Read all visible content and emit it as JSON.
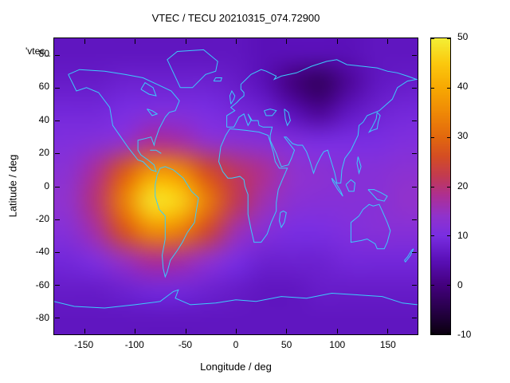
{
  "title": "VTEC / TECU 20210315_074.72900",
  "key_label": "'vtec_",
  "axes": {
    "x": {
      "label": "Longitude / deg",
      "range": [
        -180,
        180
      ],
      "ticks": [
        -150,
        -100,
        -50,
        0,
        50,
        100,
        150
      ]
    },
    "y": {
      "label": "Latitude / deg",
      "range": [
        -90,
        90
      ],
      "ticks": [
        -80,
        -60,
        -40,
        -20,
        0,
        20,
        40,
        60,
        80
      ]
    }
  },
  "colorbar": {
    "range": [
      -10,
      50
    ],
    "ticks": [
      -10,
      0,
      10,
      20,
      30,
      40,
      50
    ],
    "palette": [
      {
        "v": -10,
        "c": "#0b0010"
      },
      {
        "v": -5,
        "c": "#28004a"
      },
      {
        "v": 0,
        "c": "#44007f"
      },
      {
        "v": 5,
        "c": "#5a10b8"
      },
      {
        "v": 10,
        "c": "#7a2ee2"
      },
      {
        "v": 14,
        "c": "#9132cc"
      },
      {
        "v": 18,
        "c": "#ad2f94"
      },
      {
        "v": 22,
        "c": "#c23a52"
      },
      {
        "v": 26,
        "c": "#d44d24"
      },
      {
        "v": 30,
        "c": "#e2680e"
      },
      {
        "v": 35,
        "c": "#ef8906"
      },
      {
        "v": 40,
        "c": "#f7a802"
      },
      {
        "v": 45,
        "c": "#fbc90e"
      },
      {
        "v": 50,
        "c": "#f4ef35"
      }
    ]
  },
  "map_overlay": {
    "stroke": "#3bcdfb",
    "polylines": [
      [
        [
          -166,
          68
        ],
        [
          -158,
          58
        ],
        [
          -148,
          60
        ],
        [
          -136,
          57
        ],
        [
          -125,
          48
        ],
        [
          -122,
          37
        ],
        [
          -114,
          30
        ],
        [
          -106,
          23
        ],
        [
          -97,
          16
        ],
        [
          -92,
          15
        ],
        [
          -84,
          10
        ],
        [
          -79,
          9
        ],
        [
          -81,
          13
        ],
        [
          -87,
          16
        ],
        [
          -94,
          19
        ],
        [
          -97,
          22
        ],
        [
          -97,
          28
        ],
        [
          -90,
          29
        ],
        [
          -84,
          30
        ],
        [
          -81,
          25
        ],
        [
          -80,
          28
        ],
        [
          -76,
          35
        ],
        [
          -70,
          42
        ],
        [
          -66,
          45
        ],
        [
          -60,
          46
        ],
        [
          -56,
          52
        ],
        [
          -64,
          58
        ],
        [
          -78,
          62
        ],
        [
          -92,
          66
        ],
        [
          -110,
          68
        ],
        [
          -130,
          70
        ],
        [
          -155,
          71
        ],
        [
          -166,
          68
        ]
      ],
      [
        [
          -94,
          59
        ],
        [
          -86,
          56
        ],
        [
          -79,
          55
        ],
        [
          -82,
          60
        ],
        [
          -90,
          63
        ],
        [
          -94,
          59
        ]
      ],
      [
        [
          -88,
          47
        ],
        [
          -83,
          46
        ],
        [
          -78,
          44
        ],
        [
          -83,
          43
        ],
        [
          -88,
          47
        ]
      ],
      [
        [
          -55,
          60
        ],
        [
          -43,
          60
        ],
        [
          -30,
          68
        ],
        [
          -20,
          70
        ],
        [
          -18,
          76
        ],
        [
          -32,
          83
        ],
        [
          -58,
          82
        ],
        [
          -68,
          77
        ],
        [
          -55,
          60
        ]
      ],
      [
        [
          -85,
          22
        ],
        [
          -79,
          22
        ],
        [
          -74,
          20
        ]
      ],
      [
        [
          -78,
          7
        ],
        [
          -75,
          11
        ],
        [
          -70,
          12
        ],
        [
          -62,
          10
        ],
        [
          -52,
          5
        ],
        [
          -44,
          -3
        ],
        [
          -37,
          -7
        ],
        [
          -39,
          -14
        ],
        [
          -41,
          -22
        ],
        [
          -48,
          -28
        ],
        [
          -53,
          -34
        ],
        [
          -58,
          -39
        ],
        [
          -65,
          -45
        ],
        [
          -68,
          -52
        ],
        [
          -70,
          -55
        ],
        [
          -72,
          -50
        ],
        [
          -73,
          -42
        ],
        [
          -70,
          -32
        ],
        [
          -70,
          -18
        ],
        [
          -76,
          -14
        ],
        [
          -80,
          -6
        ],
        [
          -80,
          1
        ],
        [
          -78,
          7
        ]
      ],
      [
        [
          -6,
          35
        ],
        [
          -10,
          31
        ],
        [
          -15,
          24
        ],
        [
          -17,
          15
        ],
        [
          -13,
          9
        ],
        [
          -8,
          5
        ],
        [
          -4,
          5
        ],
        [
          4,
          6
        ],
        [
          8,
          4
        ],
        [
          9,
          0
        ],
        [
          12,
          -5
        ],
        [
          12,
          -17
        ],
        [
          15,
          -26
        ],
        [
          18,
          -34
        ],
        [
          25,
          -34
        ],
        [
          31,
          -29
        ],
        [
          35,
          -22
        ],
        [
          40,
          -15
        ],
        [
          40,
          -10
        ],
        [
          42,
          -2
        ],
        [
          46,
          4
        ],
        [
          51,
          11
        ],
        [
          43,
          11
        ],
        [
          39,
          15
        ],
        [
          37,
          21
        ],
        [
          32,
          31
        ],
        [
          23,
          33
        ],
        [
          10,
          34
        ],
        [
          -6,
          35
        ]
      ],
      [
        [
          -9,
          36
        ],
        [
          -9,
          43
        ],
        [
          -1,
          46
        ],
        [
          -5,
          48
        ],
        [
          1,
          51
        ],
        [
          4,
          53
        ],
        [
          8,
          55
        ],
        [
          8,
          57
        ],
        [
          5,
          59
        ],
        [
          5,
          62
        ],
        [
          10,
          65
        ],
        [
          15,
          68
        ],
        [
          25,
          71
        ],
        [
          30,
          70
        ],
        [
          40,
          67
        ],
        [
          38,
          65
        ],
        [
          45,
          67
        ],
        [
          60,
          69
        ],
        [
          75,
          73
        ],
        [
          90,
          76
        ],
        [
          100,
          77
        ],
        [
          110,
          74
        ],
        [
          125,
          73
        ],
        [
          140,
          72
        ],
        [
          150,
          70
        ],
        [
          160,
          69
        ],
        [
          170,
          67
        ],
        [
          179,
          65
        ],
        [
          170,
          64
        ],
        [
          160,
          60
        ],
        [
          155,
          53
        ],
        [
          142,
          46
        ],
        [
          130,
          43
        ],
        [
          126,
          39
        ],
        [
          122,
          37
        ],
        [
          121,
          31
        ],
        [
          114,
          22
        ],
        [
          108,
          17
        ],
        [
          105,
          10
        ],
        [
          104,
          2
        ],
        [
          100,
          2
        ],
        [
          98,
          8
        ],
        [
          94,
          16
        ],
        [
          91,
          22
        ],
        [
          87,
          21
        ],
        [
          84,
          18
        ],
        [
          80,
          13
        ],
        [
          77,
          8
        ],
        [
          73,
          16
        ],
        [
          70,
          21
        ],
        [
          66,
          25
        ],
        [
          61,
          25
        ],
        [
          56,
          26
        ],
        [
          50,
          30
        ],
        [
          48,
          30
        ],
        [
          58,
          22
        ],
        [
          55,
          17
        ],
        [
          52,
          13
        ],
        [
          45,
          12
        ],
        [
          43,
          15
        ],
        [
          40,
          20
        ],
        [
          34,
          28
        ],
        [
          34,
          31
        ],
        [
          36,
          36
        ],
        [
          30,
          36
        ],
        [
          27,
          36
        ],
        [
          23,
          37
        ],
        [
          22,
          40
        ],
        [
          16,
          40
        ],
        [
          12,
          44
        ],
        [
          15,
          40
        ],
        [
          12,
          37
        ],
        [
          8,
          44
        ],
        [
          3,
          42
        ],
        [
          -2,
          36
        ],
        [
          -9,
          36
        ]
      ],
      [
        [
          -5,
          50
        ],
        [
          -2,
          53
        ],
        [
          -1,
          55
        ],
        [
          -4,
          58
        ],
        [
          -6,
          55
        ],
        [
          -5,
          50
        ]
      ],
      [
        [
          -22,
          64
        ],
        [
          -15,
          64
        ],
        [
          -14,
          66
        ],
        [
          -20,
          66
        ],
        [
          -22,
          64
        ]
      ],
      [
        [
          140,
          45
        ],
        [
          143,
          43
        ],
        [
          141,
          39
        ],
        [
          140,
          35
        ],
        [
          135,
          34
        ],
        [
          132,
          33
        ],
        [
          135,
          36
        ],
        [
          139,
          41
        ],
        [
          140,
          45
        ]
      ],
      [
        [
          95,
          5
        ],
        [
          99,
          2
        ],
        [
          104,
          -3
        ],
        [
          106,
          -6
        ],
        [
          101,
          -2
        ],
        [
          96,
          3
        ],
        [
          95,
          5
        ]
      ],
      [
        [
          109,
          1
        ],
        [
          114,
          4
        ],
        [
          118,
          2
        ],
        [
          117,
          -3
        ],
        [
          112,
          -3
        ],
        [
          109,
          1
        ]
      ],
      [
        [
          131,
          -2
        ],
        [
          137,
          -2
        ],
        [
          144,
          -4
        ],
        [
          150,
          -6
        ],
        [
          147,
          -9
        ],
        [
          140,
          -8
        ],
        [
          134,
          -4
        ],
        [
          131,
          -2
        ]
      ],
      [
        [
          121,
          18
        ],
        [
          124,
          12
        ],
        [
          122,
          8
        ],
        [
          120,
          14
        ],
        [
          121,
          18
        ]
      ],
      [
        [
          114,
          -22
        ],
        [
          114,
          -34
        ],
        [
          124,
          -33
        ],
        [
          130,
          -32
        ],
        [
          138,
          -35
        ],
        [
          140,
          -38
        ],
        [
          147,
          -38
        ],
        [
          150,
          -34
        ],
        [
          153,
          -27
        ],
        [
          150,
          -22
        ],
        [
          145,
          -15
        ],
        [
          142,
          -11
        ],
        [
          136,
          -12
        ],
        [
          132,
          -11
        ],
        [
          126,
          -14
        ],
        [
          122,
          -18
        ],
        [
          114,
          -22
        ]
      ],
      [
        [
          167,
          -45
        ],
        [
          170,
          -43
        ],
        [
          174,
          -39
        ],
        [
          176,
          -38
        ],
        [
          173,
          -42
        ],
        [
          168,
          -46
        ],
        [
          167,
          -45
        ]
      ],
      [
        [
          44,
          -16
        ],
        [
          47,
          -15
        ],
        [
          50,
          -16
        ],
        [
          48,
          -22
        ],
        [
          45,
          -25
        ],
        [
          43,
          -21
        ],
        [
          44,
          -16
        ]
      ],
      [
        [
          -180,
          -70
        ],
        [
          -160,
          -73
        ],
        [
          -130,
          -74
        ],
        [
          -100,
          -72
        ],
        [
          -75,
          -70
        ],
        [
          -62,
          -64
        ],
        [
          -57,
          -63
        ],
        [
          -60,
          -68
        ],
        [
          -45,
          -72
        ],
        [
          -20,
          -71
        ],
        [
          0,
          -69
        ],
        [
          20,
          -70
        ],
        [
          45,
          -67
        ],
        [
          70,
          -68
        ],
        [
          95,
          -65
        ],
        [
          120,
          -66
        ],
        [
          145,
          -67
        ],
        [
          165,
          -71
        ],
        [
          180,
          -72
        ]
      ],
      [
        [
          28,
          46
        ],
        [
          34,
          47
        ],
        [
          40,
          46
        ],
        [
          36,
          43
        ],
        [
          30,
          43
        ],
        [
          28,
          46
        ]
      ],
      [
        [
          48,
          47
        ],
        [
          52,
          45
        ],
        [
          54,
          40
        ],
        [
          51,
          37
        ],
        [
          49,
          41
        ],
        [
          48,
          47
        ]
      ]
    ]
  },
  "chart_data": {
    "type": "heatmap",
    "title": "VTEC / TECU 20210315_074.72900",
    "xlabel": "Longitude / deg",
    "ylabel": "Latitude / deg",
    "units": "TECU",
    "value_range": [
      -10,
      50
    ],
    "x_range": [
      -180,
      180
    ],
    "y_range": [
      -90,
      90
    ],
    "lon": [
      -180,
      -150,
      -120,
      -90,
      -60,
      -30,
      0,
      30,
      60,
      90,
      120,
      150,
      180
    ],
    "lat": [
      90,
      70,
      50,
      30,
      10,
      -10,
      -30,
      -50,
      -70,
      -90
    ],
    "values_tecu": [
      [
        6,
        6,
        6,
        6,
        6,
        6,
        6,
        5,
        5,
        5,
        5,
        6,
        6
      ],
      [
        7,
        7,
        8,
        8,
        8,
        8,
        7,
        5,
        0,
        -3,
        2,
        6,
        7
      ],
      [
        9,
        9,
        10,
        11,
        11,
        10,
        9,
        8,
        5,
        2,
        6,
        8,
        9
      ],
      [
        11,
        12,
        14,
        18,
        17,
        14,
        13,
        12,
        11,
        10,
        10,
        10,
        11
      ],
      [
        13,
        18,
        28,
        38,
        36,
        26,
        21,
        18,
        14,
        13,
        12,
        12,
        13
      ],
      [
        14,
        20,
        34,
        48,
        46,
        33,
        22,
        16,
        13,
        12,
        12,
        12,
        14
      ],
      [
        12,
        17,
        27,
        36,
        34,
        25,
        16,
        12,
        10,
        10,
        11,
        12,
        12
      ],
      [
        9,
        11,
        15,
        18,
        17,
        14,
        10,
        8,
        8,
        8,
        9,
        9,
        9
      ],
      [
        7,
        7,
        8,
        9,
        9,
        8,
        7,
        6,
        6,
        7,
        7,
        7,
        7
      ],
      [
        6,
        6,
        6,
        6,
        6,
        6,
        6,
        6,
        6,
        6,
        6,
        6,
        6
      ]
    ]
  }
}
